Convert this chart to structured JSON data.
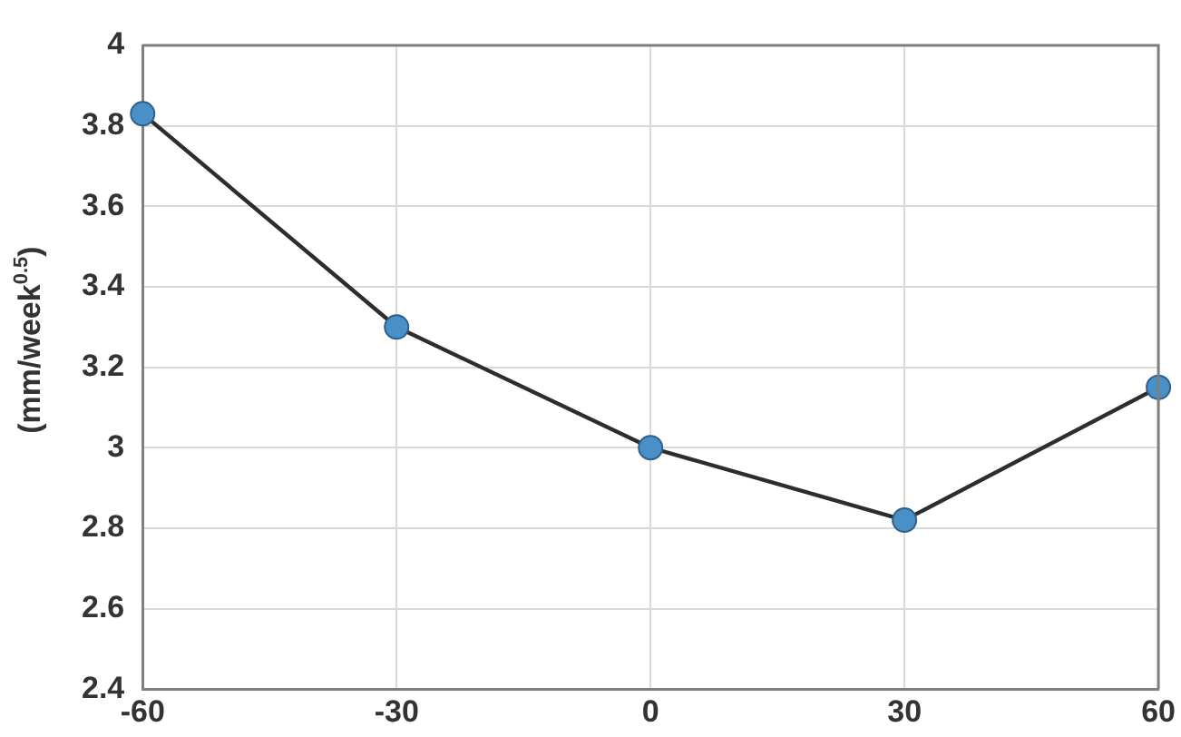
{
  "chart_data": {
    "type": "line",
    "ylabel": "(mm/week$^{0.5}$)",
    "x": [
      -60,
      -30,
      0,
      30,
      60
    ],
    "series": [
      {
        "color": "#4a90c8",
        "values": [
          3.83,
          3.3,
          3.0,
          2.82,
          3.15
        ]
      }
    ],
    "xlim": [
      -60,
      60
    ],
    "xticks": [
      -60,
      -30,
      0,
      30,
      60
    ],
    "ylim": [
      2.4,
      4
    ],
    "yticks": [
      2.4,
      2.6,
      2.8,
      3,
      3.2,
      3.4,
      3.6,
      3.8,
      4
    ],
    "grid": true,
    "legend": false,
    "marker": "circle",
    "line_style": "solid"
  }
}
